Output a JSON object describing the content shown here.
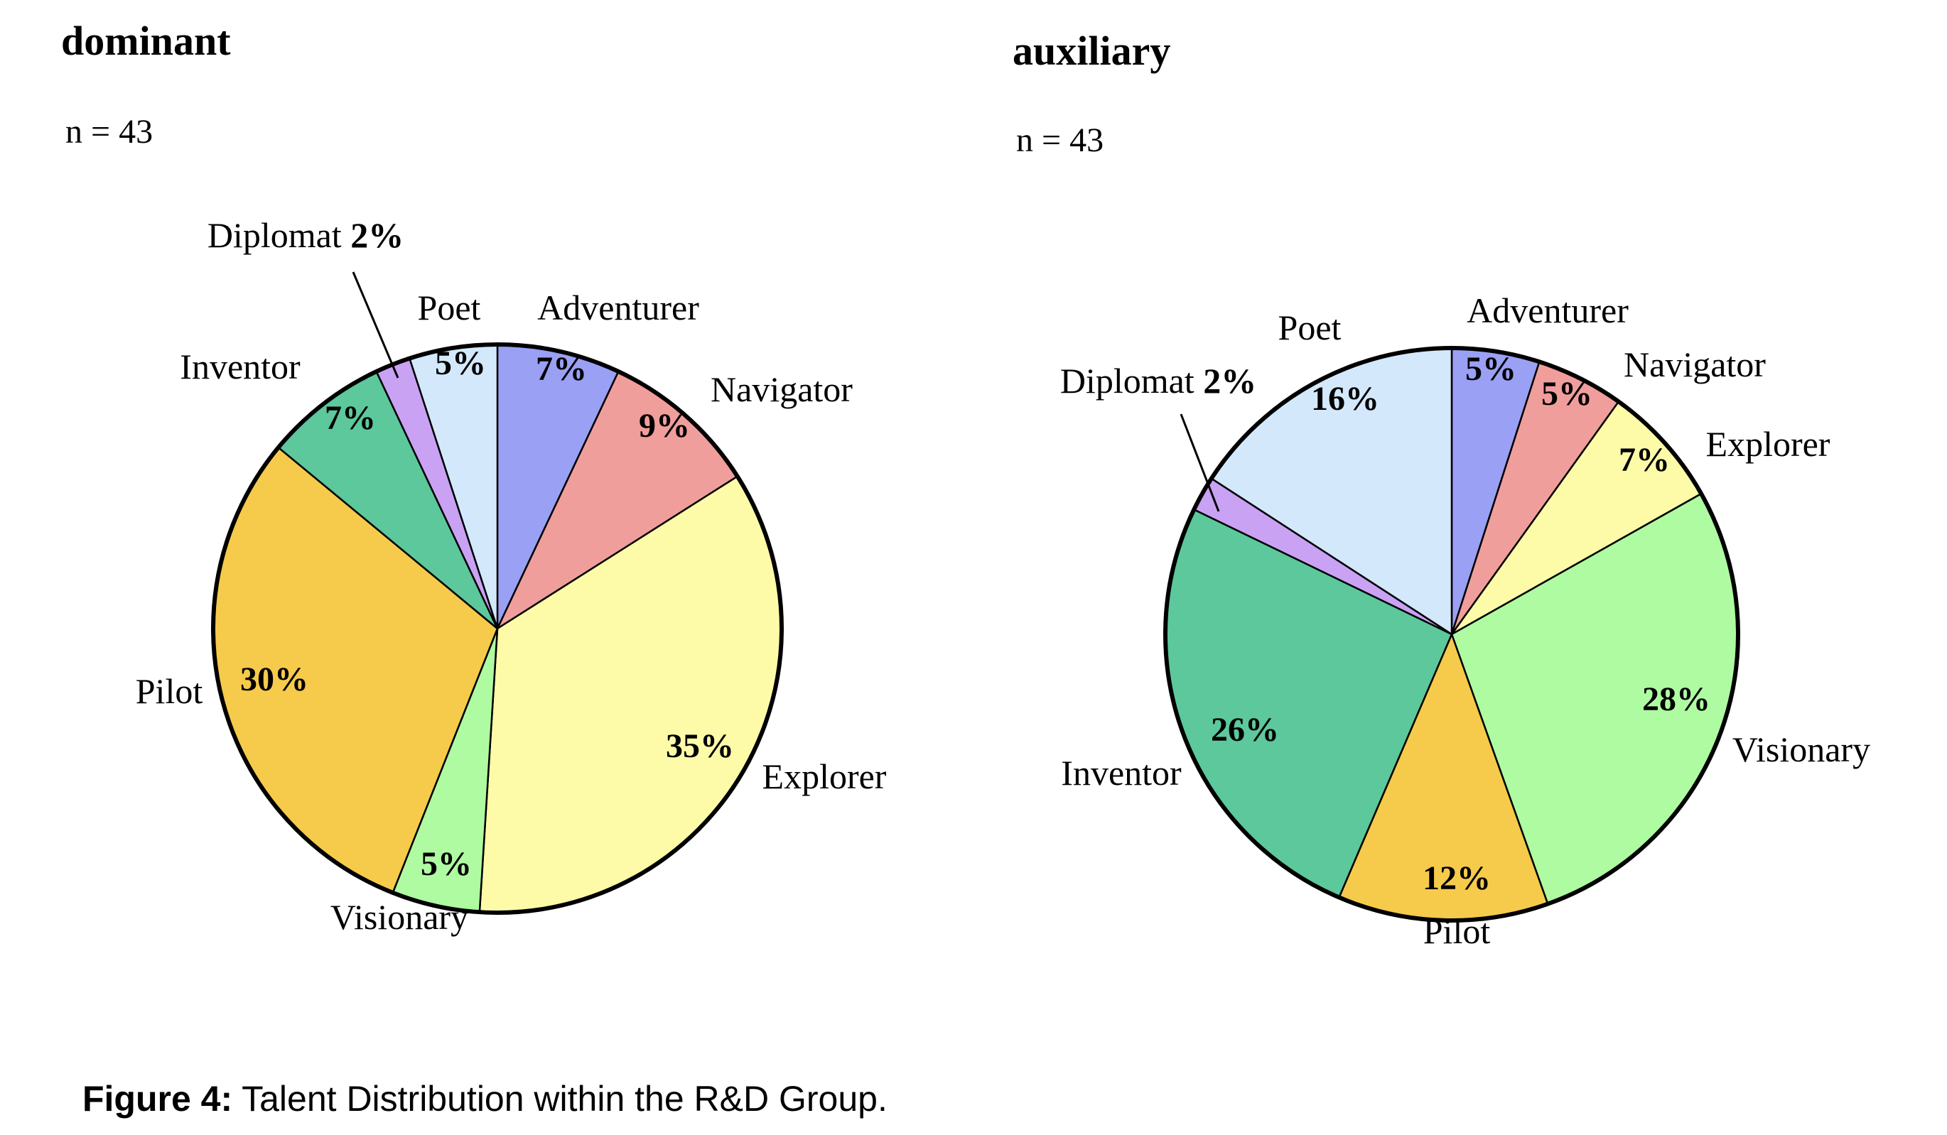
{
  "caption": {
    "prefix": "Figure 4:",
    "text": " Talent Distribution within the R&D Group."
  },
  "chart_data": [
    {
      "type": "pie",
      "title": "dominant",
      "subtitle": "n = 43",
      "start_angle_deg": 0,
      "direction": "clockwise",
      "slices": [
        {
          "label": "Adventurer",
          "value": 7,
          "value_label": "7%",
          "color": "#9aa0f4"
        },
        {
          "label": "Navigator",
          "value": 9,
          "value_label": "9%",
          "color": "#f09e9c"
        },
        {
          "label": "Explorer",
          "value": 35,
          "value_label": "35%",
          "color": "#fefba8"
        },
        {
          "label": "Visionary",
          "value": 5,
          "value_label": "5%",
          "color": "#aefba2"
        },
        {
          "label": "Pilot",
          "value": 30,
          "value_label": "30%",
          "color": "#f6ca4b"
        },
        {
          "label": "Inventor",
          "value": 7,
          "value_label": "7%",
          "color": "#5cc89c"
        },
        {
          "label": "Diplomat",
          "value": 2,
          "value_label": "2%",
          "color": "#c9a2f4"
        },
        {
          "label": "Poet",
          "value": 5,
          "value_label": "5%",
          "color": "#d3e9fb"
        }
      ]
    },
    {
      "type": "pie",
      "title": "auxiliary",
      "subtitle": "n = 43",
      "start_angle_deg": 0,
      "direction": "clockwise",
      "slices": [
        {
          "label": "Adventurer",
          "value": 5,
          "value_label": "5%",
          "color": "#9aa0f4"
        },
        {
          "label": "Navigator",
          "value": 5,
          "value_label": "5%",
          "color": "#f09e9c"
        },
        {
          "label": "Explorer",
          "value": 7,
          "value_label": "7%",
          "color": "#fefba8"
        },
        {
          "label": "Visionary",
          "value": 28,
          "value_label": "28%",
          "color": "#aefba2"
        },
        {
          "label": "Pilot",
          "value": 12,
          "value_label": "12%",
          "color": "#f6ca4b"
        },
        {
          "label": "Inventor",
          "value": 26,
          "value_label": "26%",
          "color": "#5cc89c"
        },
        {
          "label": "Diplomat",
          "value": 2,
          "value_label": "2%",
          "color": "#c9a2f4"
        },
        {
          "label": "Poet",
          "value": 16,
          "value_label": "16%",
          "color": "#d3e9fb"
        }
      ]
    }
  ]
}
